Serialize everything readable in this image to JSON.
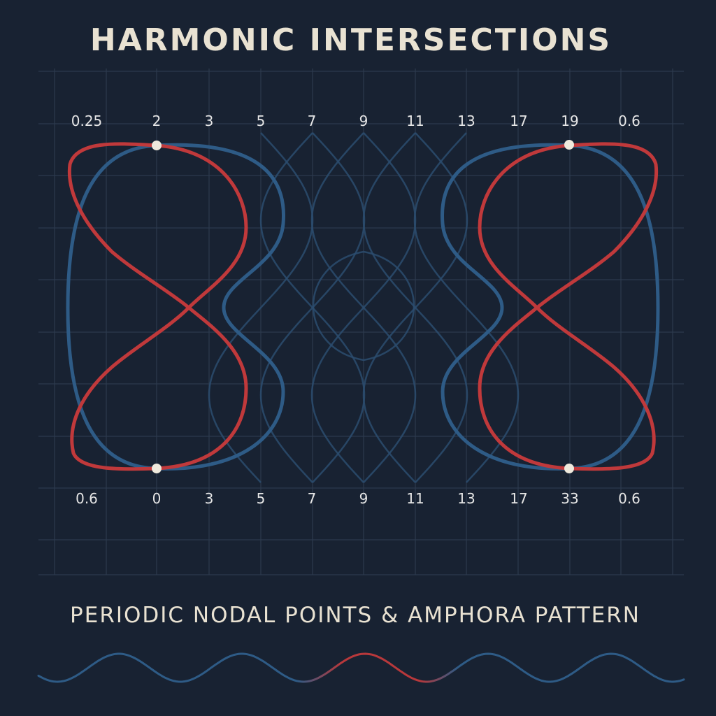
{
  "title": "HARMONIC INTERSECTIONS",
  "subtitle": "PERIODIC NODAL POINTS & AMPHORA PATTERN",
  "top_labels": [
    "0.25",
    "2",
    "3",
    "5",
    "7",
    "9",
    "11",
    "13",
    "17",
    "19",
    "0.6"
  ],
  "bottom_labels": [
    "0.6",
    "0",
    "3",
    "5",
    "7",
    "9",
    "11",
    "13",
    "17",
    "33",
    "0.6"
  ],
  "colors": {
    "background": "#182232",
    "grid": "#2c3a4e",
    "blue_curve": "#2e5b86",
    "blue_faint": "#2c4c6f",
    "red_curve": "#c0393b",
    "node": "#efe9dc",
    "text": "#e9e2d2"
  }
}
